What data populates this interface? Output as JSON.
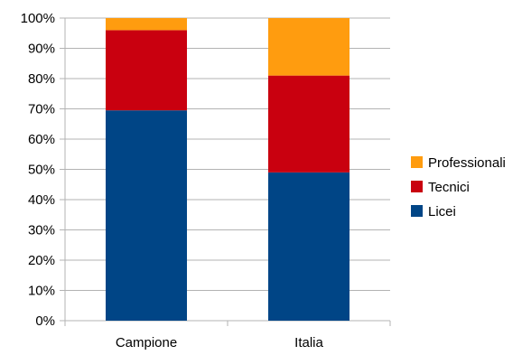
{
  "chart_data": {
    "type": "bar",
    "stacked": true,
    "title": "",
    "xlabel": "",
    "ylabel": "",
    "ylim": [
      0,
      100
    ],
    "y_tick_step": 10,
    "y_tick_suffix": "%",
    "grid": true,
    "legend_position": "right",
    "categories": [
      "Campione",
      "Italia"
    ],
    "series": [
      {
        "name": "Licei",
        "color": "#004586",
        "values": [
          69.5,
          49
        ]
      },
      {
        "name": "Tecnici",
        "color": "#c9000f",
        "values": [
          26.5,
          32
        ]
      },
      {
        "name": "Professionali",
        "color": "#ff9c0f",
        "values": [
          4,
          19
        ]
      }
    ]
  }
}
